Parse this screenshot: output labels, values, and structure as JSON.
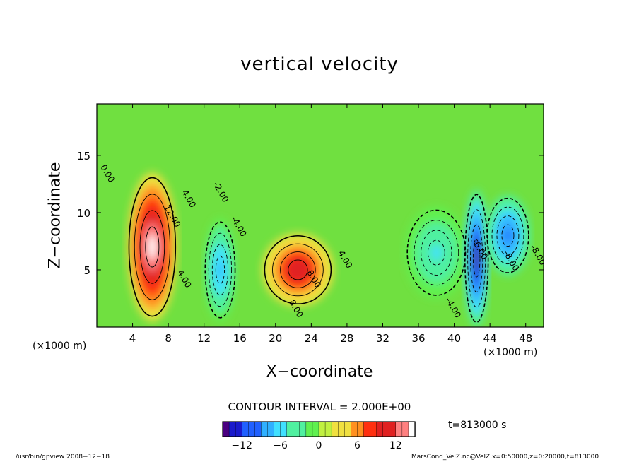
{
  "colors": {
    "scale": [
      "#4a0080",
      "#1a1acc",
      "#2060ff",
      "#30b0ff",
      "#40e0ff",
      "#50f0a0",
      "#60f050",
      "#c0f040",
      "#f0e040",
      "#ff9020",
      "#ff3010",
      "#e02020",
      "#ff8080",
      "#ffffff"
    ],
    "background_field": "#70e040",
    "contour": "#000000"
  },
  "chart_data": {
    "type": "heatmap",
    "title": "vertical velocity",
    "xlabel": "X−coordinate",
    "ylabel": "Z−coordinate",
    "xunit": "(×1000 m)",
    "xlim": [
      0,
      50
    ],
    "ylim": [
      0,
      19.5
    ],
    "xticks": [
      4,
      8,
      12,
      16,
      20,
      24,
      28,
      32,
      36,
      40,
      44,
      48
    ],
    "yticks": [
      5,
      10,
      15
    ],
    "contour_interval": "CONTOUR INTERVAL = 2.000E+00",
    "colorbar": {
      "min": -15,
      "max": 15,
      "ticks": [
        -12,
        -6,
        0,
        6,
        12
      ]
    },
    "contour_labels": [
      "4.00",
      "12.00",
      "8.00",
      "-4.00",
      "-2.00",
      "4.00",
      "8.00",
      "4.00",
      "-4.00",
      "-8.00",
      "-8.00",
      "-6.00",
      "0.00"
    ],
    "features": [
      {
        "x": 6.2,
        "z": 7.0,
        "value": 15,
        "rx": 2.8,
        "rz": 6.5
      },
      {
        "x": 22.5,
        "z": 5.0,
        "value": 11,
        "rx": 4.0,
        "rz": 3.2
      },
      {
        "x": 13.8,
        "z": 5.0,
        "value": -8,
        "rx": 1.8,
        "rz": 4.5
      },
      {
        "x": 38.0,
        "z": 6.5,
        "value": -5,
        "rx": 3.5,
        "rz": 4.0
      },
      {
        "x": 42.5,
        "z": 6.0,
        "value": -14,
        "rx": 1.4,
        "rz": 6.0
      },
      {
        "x": 46.0,
        "z": 8.0,
        "value": -10,
        "rx": 2.5,
        "rz": 3.5
      }
    ]
  },
  "labels": {
    "time": "t=813000 s",
    "footer_left": "/usr/bin/gpview   2008−12−18",
    "footer_right": "MarsCond_VelZ.nc@VelZ,x=0:50000,z=0:20000,t=813000"
  }
}
